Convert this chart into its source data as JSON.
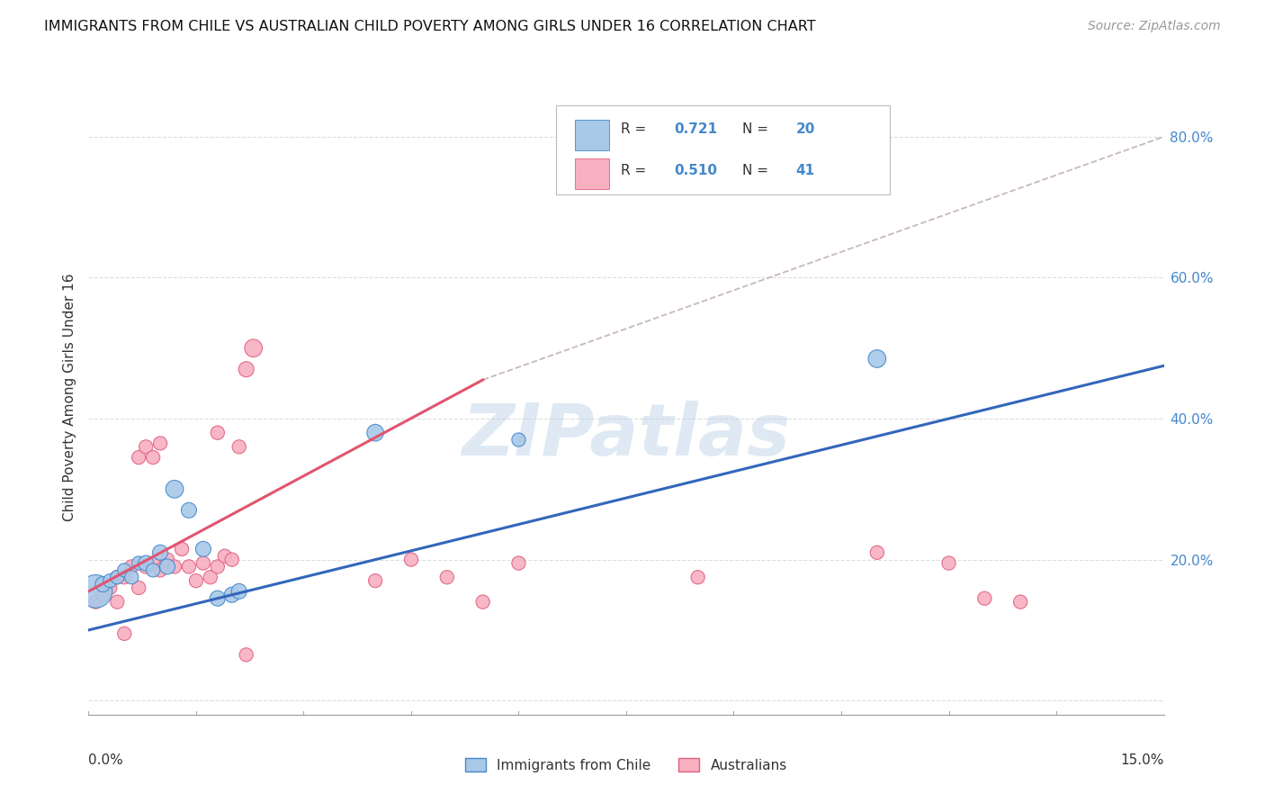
{
  "title": "IMMIGRANTS FROM CHILE VS AUSTRALIAN CHILD POVERTY AMONG GIRLS UNDER 16 CORRELATION CHART",
  "source": "Source: ZipAtlas.com",
  "ylabel": "Child Poverty Among Girls Under 16",
  "xlim": [
    0.0,
    0.15
  ],
  "ylim": [
    -0.02,
    0.88
  ],
  "R_chile": 0.721,
  "N_chile": 20,
  "R_aus": 0.51,
  "N_aus": 41,
  "color_chile_fill": "#a8c8e8",
  "color_chile_edge": "#4488cc",
  "color_aus_fill": "#f8b0c0",
  "color_aus_edge": "#e06080",
  "color_chile_line": "#3366bb",
  "color_aus_line": "#e05570",
  "color_dashed": "#c8b8b8",
  "watermark": "ZIPatlas",
  "chile_points_x": [
    0.001,
    0.002,
    0.003,
    0.004,
    0.005,
    0.006,
    0.007,
    0.008,
    0.009,
    0.01,
    0.011,
    0.012,
    0.014,
    0.016,
    0.018,
    0.02,
    0.021,
    0.04,
    0.06,
    0.11
  ],
  "chile_points_y": [
    0.155,
    0.165,
    0.17,
    0.175,
    0.185,
    0.175,
    0.195,
    0.195,
    0.185,
    0.21,
    0.19,
    0.3,
    0.27,
    0.215,
    0.145,
    0.15,
    0.155,
    0.38,
    0.37,
    0.485
  ],
  "chile_sizes": [
    700,
    150,
    120,
    120,
    120,
    120,
    120,
    150,
    120,
    150,
    150,
    200,
    150,
    150,
    150,
    150,
    150,
    180,
    120,
    200
  ],
  "aus_points_x": [
    0.001,
    0.002,
    0.003,
    0.004,
    0.004,
    0.005,
    0.005,
    0.006,
    0.007,
    0.007,
    0.008,
    0.008,
    0.009,
    0.009,
    0.01,
    0.01,
    0.011,
    0.012,
    0.013,
    0.014,
    0.015,
    0.016,
    0.017,
    0.018,
    0.018,
    0.019,
    0.02,
    0.021,
    0.022,
    0.022,
    0.023,
    0.04,
    0.045,
    0.05,
    0.055,
    0.06,
    0.085,
    0.11,
    0.12,
    0.125,
    0.13
  ],
  "aus_points_y": [
    0.14,
    0.15,
    0.16,
    0.14,
    0.175,
    0.095,
    0.175,
    0.19,
    0.16,
    0.345,
    0.19,
    0.36,
    0.195,
    0.345,
    0.185,
    0.365,
    0.2,
    0.19,
    0.215,
    0.19,
    0.17,
    0.195,
    0.175,
    0.19,
    0.38,
    0.205,
    0.2,
    0.36,
    0.065,
    0.47,
    0.5,
    0.17,
    0.2,
    0.175,
    0.14,
    0.195,
    0.175,
    0.21,
    0.195,
    0.145,
    0.14
  ],
  "aus_sizes": [
    120,
    120,
    120,
    120,
    120,
    120,
    120,
    120,
    120,
    120,
    120,
    120,
    120,
    120,
    120,
    120,
    120,
    120,
    120,
    120,
    120,
    120,
    120,
    120,
    120,
    120,
    120,
    120,
    120,
    150,
    200,
    120,
    120,
    120,
    120,
    120,
    120,
    120,
    120,
    120,
    120
  ],
  "legend_label_chile": "Immigrants from Chile",
  "legend_label_aus": "Australians",
  "chile_line_x": [
    0.0,
    0.15
  ],
  "chile_line_y": [
    0.1,
    0.475
  ],
  "aus_line_x": [
    0.0,
    0.055
  ],
  "aus_line_y": [
    0.155,
    0.455
  ],
  "dash_line_x": [
    0.055,
    0.15
  ],
  "dash_line_y": [
    0.455,
    0.8
  ]
}
